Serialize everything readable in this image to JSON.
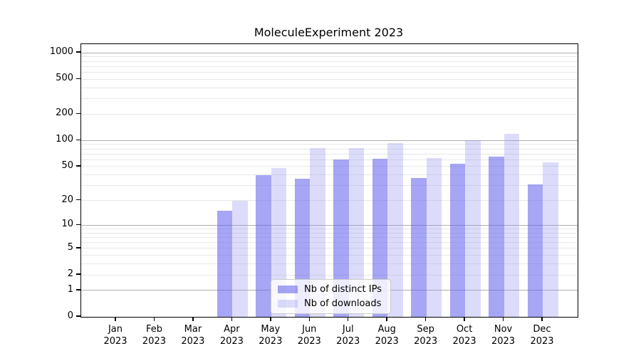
{
  "title": "MoleculeExperiment 2023",
  "chart_data": {
    "type": "bar",
    "title": "MoleculeExperiment 2023",
    "xlabel": "",
    "ylabel": "",
    "scale": "log1p",
    "ylim": [
      0,
      1254
    ],
    "yticks": [
      1000,
      500,
      200,
      100,
      50,
      20,
      10,
      5,
      2,
      1,
      0
    ],
    "grid": "horizontal",
    "legend_position": "lower center",
    "categories": [
      "Jan 2023",
      "Feb 2023",
      "Mar 2023",
      "Apr 2023",
      "May 2023",
      "Jun 2023",
      "Jul 2023",
      "Aug 2023",
      "Sep 2023",
      "Oct 2023",
      "Nov 2023",
      "Dec 2023"
    ],
    "series": [
      {
        "name": "Nb of distinct IPs",
        "color": "#5c5ceb",
        "opacity": 0.55,
        "values": [
          0,
          0,
          0,
          15,
          40,
          36,
          60,
          62,
          37,
          54,
          65,
          31
        ]
      },
      {
        "name": "Nb of downloads",
        "color": "#8c8cf0",
        "opacity": 0.3,
        "values": [
          0,
          0,
          0,
          20,
          48,
          81,
          82,
          94,
          63,
          100,
          120,
          56
        ]
      }
    ],
    "colors": {
      "major_grid": "#b0b0b0",
      "minor_grid": "#e8e8e8",
      "axis": "#000000",
      "legend_border": "#cccccc"
    }
  }
}
